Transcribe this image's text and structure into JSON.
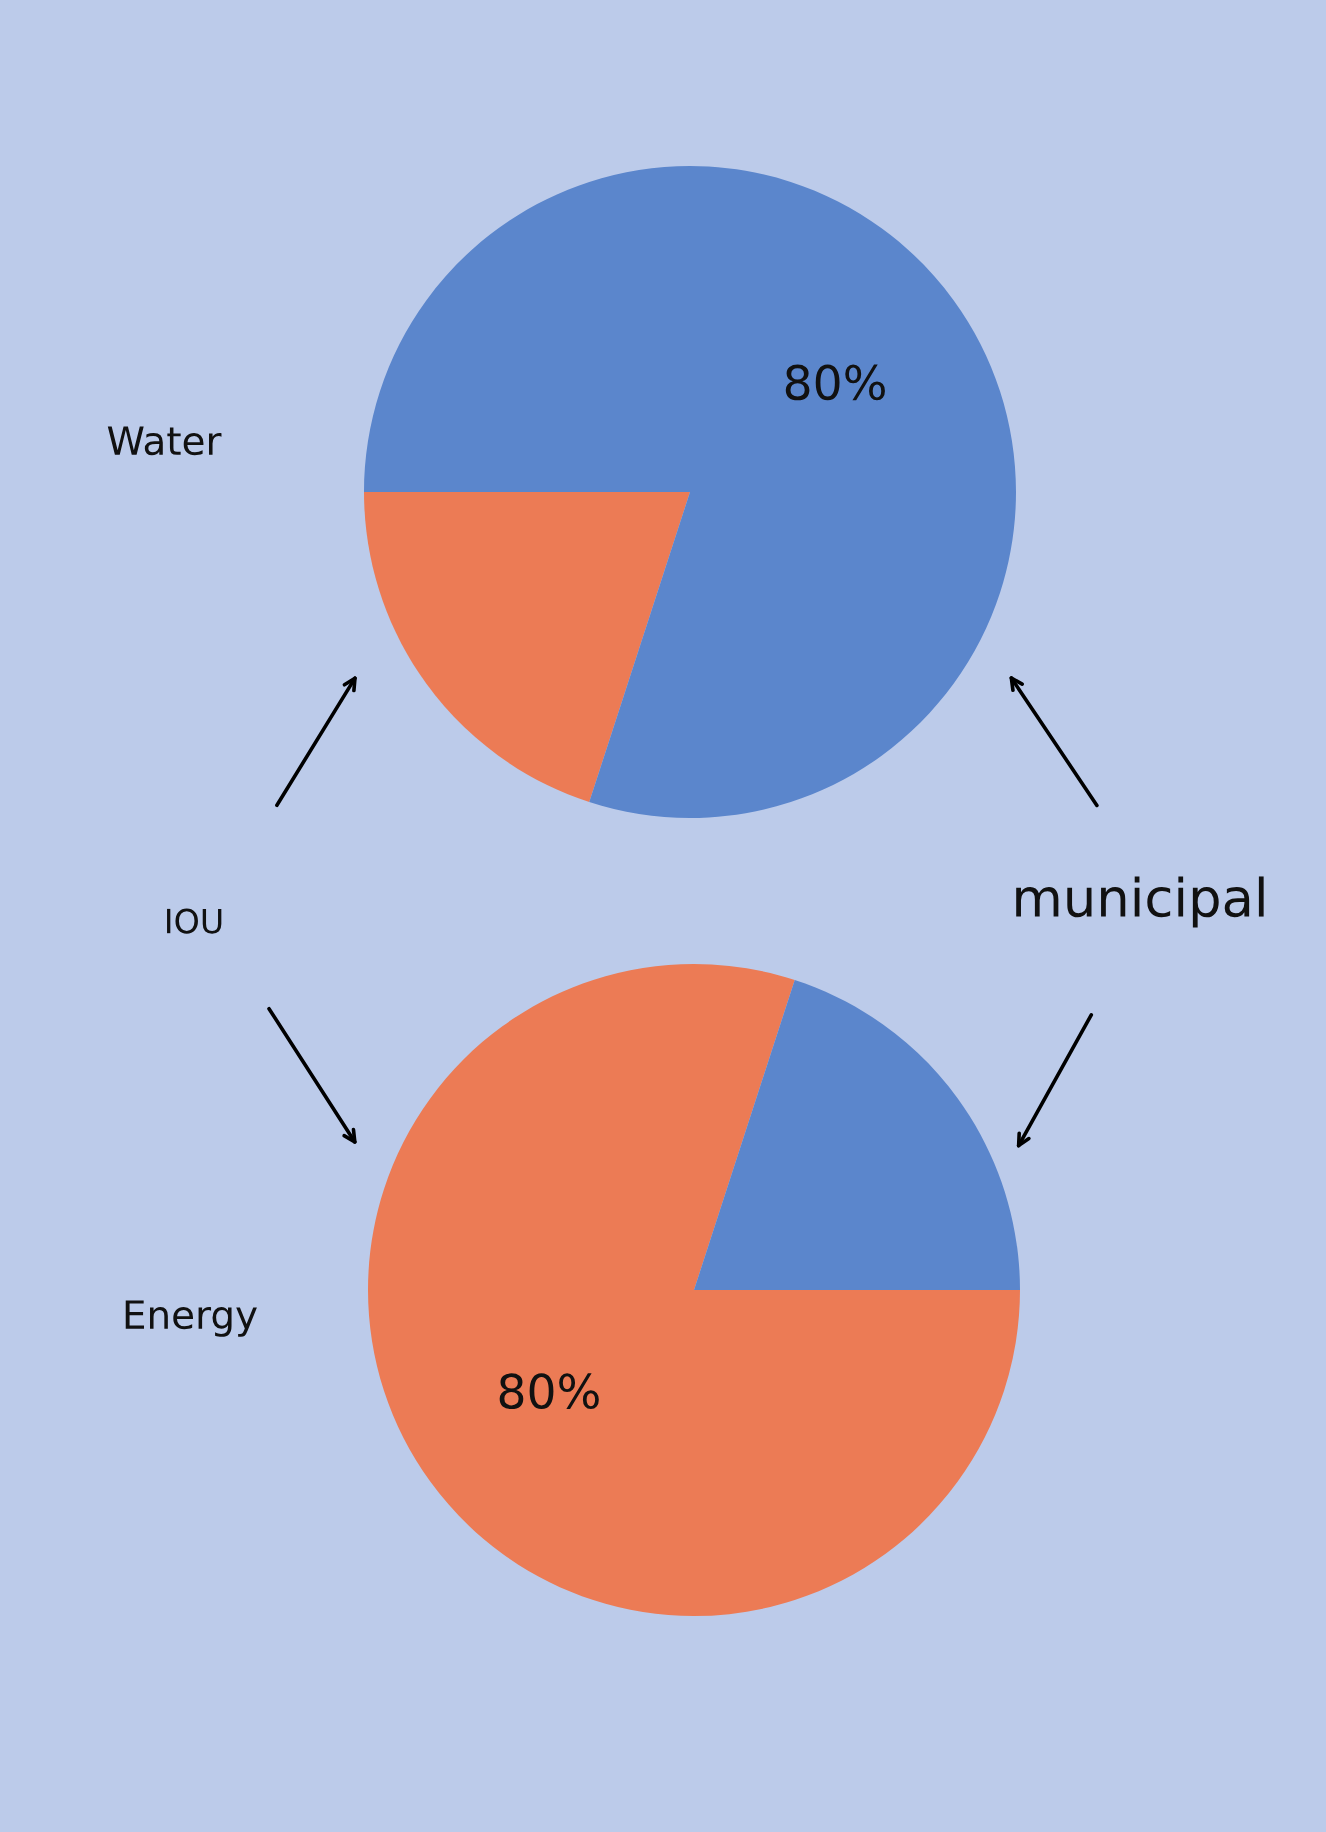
{
  "chart_data": [
    {
      "type": "pie",
      "title": "Water",
      "categories": [
        null,
        null
      ],
      "values": [
        20,
        80
      ],
      "colors": [
        "#ec7b55",
        "#5b86cc"
      ],
      "value_labels": [
        null,
        "80%"
      ],
      "annotations": [
        "IOU",
        "municipal"
      ]
    },
    {
      "type": "pie",
      "title": "Energy",
      "categories": [
        null,
        null
      ],
      "values": [
        80,
        20
      ],
      "colors": [
        "#ec7b55",
        "#5b86cc"
      ],
      "value_labels": [
        "80%",
        null
      ]
    }
  ]
}
